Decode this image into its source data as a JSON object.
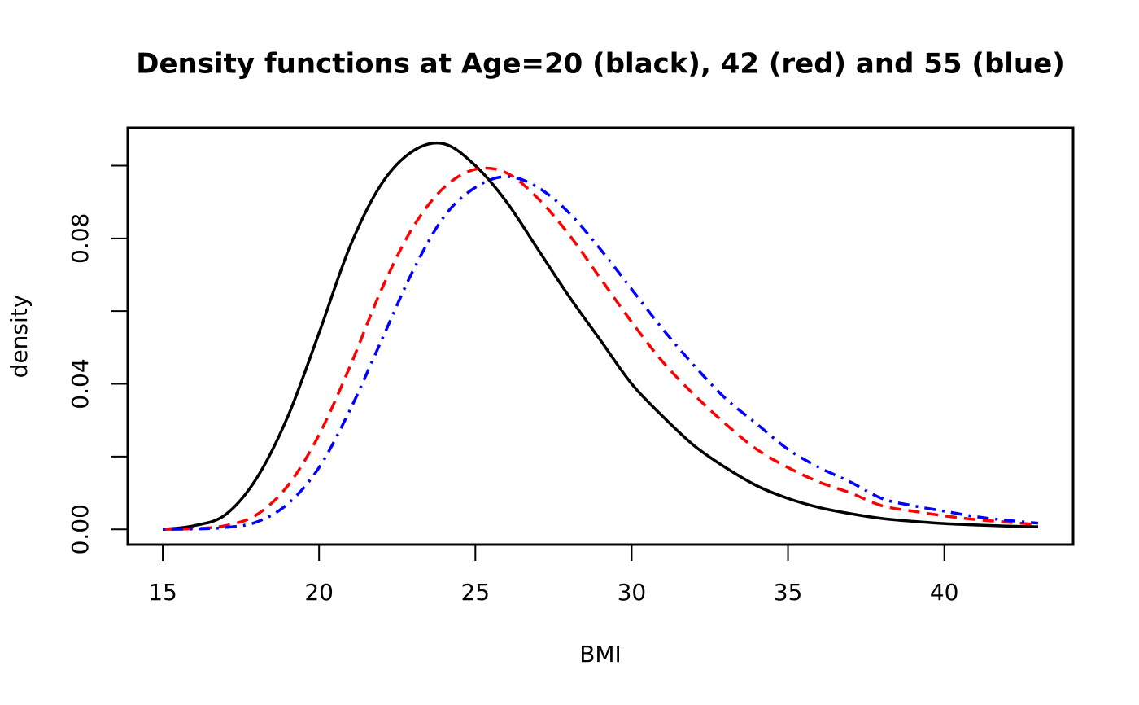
{
  "chart_data": {
    "type": "line",
    "title": "Density functions at Age=20 (black), 42 (red) and 55 (blue)",
    "x_label": "BMI",
    "y_label": "density",
    "x": [
      15,
      16,
      17,
      18,
      19,
      20,
      21,
      22,
      23,
      24,
      25,
      26,
      27,
      28,
      29,
      30,
      31,
      32,
      33,
      34,
      35,
      36,
      37,
      38,
      39,
      40,
      41,
      42,
      43
    ],
    "series": [
      {
        "name": "Age=20",
        "color": "black",
        "linestyle": "solid",
        "values": [
          0,
          0.001,
          0.004,
          0.014,
          0.031,
          0.054,
          0.078,
          0.095,
          0.104,
          0.106,
          0.1,
          0.09,
          0.077,
          0.064,
          0.052,
          0.04,
          0.031,
          0.023,
          0.017,
          0.012,
          0.0085,
          0.006,
          0.0043,
          0.003,
          0.0022,
          0.0016,
          0.0012,
          0.0009,
          0.0007
        ]
      },
      {
        "name": "Age=42",
        "color": "red",
        "linestyle": "dashed",
        "values": [
          0,
          0.0002,
          0.001,
          0.004,
          0.012,
          0.026,
          0.045,
          0.066,
          0.083,
          0.094,
          0.099,
          0.098,
          0.091,
          0.081,
          0.069,
          0.057,
          0.046,
          0.037,
          0.029,
          0.022,
          0.017,
          0.013,
          0.01,
          0.0065,
          0.005,
          0.0037,
          0.0027,
          0.002,
          0.0013
        ]
      },
      {
        "name": "Age=55",
        "color": "blue",
        "linestyle": "dotdash",
        "values": [
          0,
          0.0001,
          0.0005,
          0.002,
          0.007,
          0.017,
          0.033,
          0.052,
          0.071,
          0.086,
          0.094,
          0.097,
          0.094,
          0.087,
          0.077,
          0.066,
          0.055,
          0.045,
          0.036,
          0.029,
          0.022,
          0.017,
          0.013,
          0.0085,
          0.0065,
          0.005,
          0.0035,
          0.0025,
          0.0017
        ]
      }
    ],
    "xlim": [
      13.88,
      44.12
    ],
    "ylim": [
      -0.0042,
      0.1104
    ],
    "xticks": [
      15,
      20,
      25,
      30,
      35,
      40
    ],
    "yticks": [
      {
        "value": 0,
        "label": "0.00"
      },
      {
        "value": 0.02,
        "label": null
      },
      {
        "value": 0.04,
        "label": "0.04"
      },
      {
        "value": 0.06,
        "label": null
      },
      {
        "value": 0.08,
        "label": "0.08"
      },
      {
        "value": 0.1,
        "label": null
      }
    ],
    "grid": false,
    "legend": false
  }
}
